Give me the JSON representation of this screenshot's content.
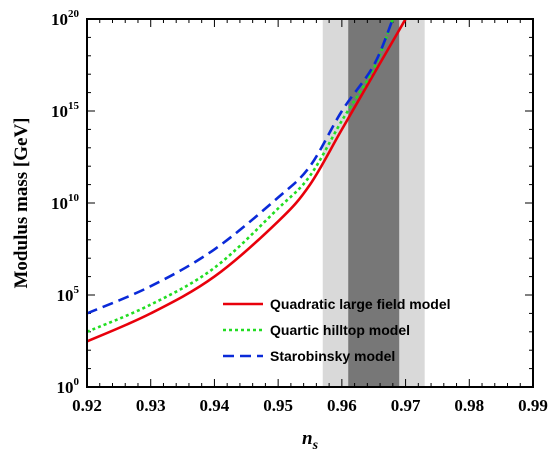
{
  "chart_data": {
    "type": "line",
    "xlabel": "n",
    "xlabel_sub": "s",
    "ylabel": "Modulus mass [GeV]",
    "xlim": [
      0.92,
      0.99
    ],
    "ylim_log10": [
      0,
      20
    ],
    "y_scale": "log",
    "x_ticks": [
      "0.92",
      "0.93",
      "0.94",
      "0.95",
      "0.96",
      "0.97",
      "0.98",
      "0.99"
    ],
    "x_tick_values": [
      0.92,
      0.93,
      0.94,
      0.95,
      0.96,
      0.97,
      0.98,
      0.99
    ],
    "y_ticks": [
      {
        "base": "10",
        "exp": "0",
        "value": 1
      },
      {
        "base": "10",
        "exp": "5",
        "value": 100000
      },
      {
        "base": "10",
        "exp": "10",
        "value": 10000000000
      },
      {
        "base": "10",
        "exp": "15",
        "value": 1000000000000000.0
      },
      {
        "base": "10",
        "exp": "20",
        "value": 1e+20
      }
    ],
    "bands": [
      {
        "x": [
          0.957,
          0.973
        ],
        "color": "#d9d9d9"
      },
      {
        "x": [
          0.961,
          0.969
        ],
        "color": "#777777"
      }
    ],
    "series": [
      {
        "name": "Quadratic large field model",
        "color": "#e8000b",
        "dash": "solid",
        "x": [
          0.92,
          0.93,
          0.94,
          0.95,
          0.955,
          0.96,
          0.965,
          0.97
        ],
        "y": [
          300.0,
          10000.0,
          1000000.0,
          1000000000.0,
          100000000000.0,
          100000000000000.0,
          1e+17,
          1e+20
        ]
      },
      {
        "name": "Quartic hilltop model",
        "color": "#22dd22",
        "dash": "dotted",
        "x": [
          0.92,
          0.93,
          0.94,
          0.95,
          0.955,
          0.96,
          0.965,
          0.968
        ],
        "y": [
          1000.0,
          30000.0,
          3000000.0,
          5000000000.0,
          300000000000.0,
          300000000000000.0,
          2e+17,
          1e+20
        ]
      },
      {
        "name": "Starobinsky model",
        "color": "#0a2ad8",
        "dash": "dashed",
        "x": [
          0.92,
          0.93,
          0.94,
          0.95,
          0.955,
          0.96,
          0.965,
          0.968
        ],
        "y": [
          10000.0,
          300000.0,
          30000000.0,
          20000000000.0,
          1000000000000.0,
          1000000000000000.0,
          3e+17,
          1e+20
        ]
      }
    ],
    "legend_position": "bottom-right"
  }
}
